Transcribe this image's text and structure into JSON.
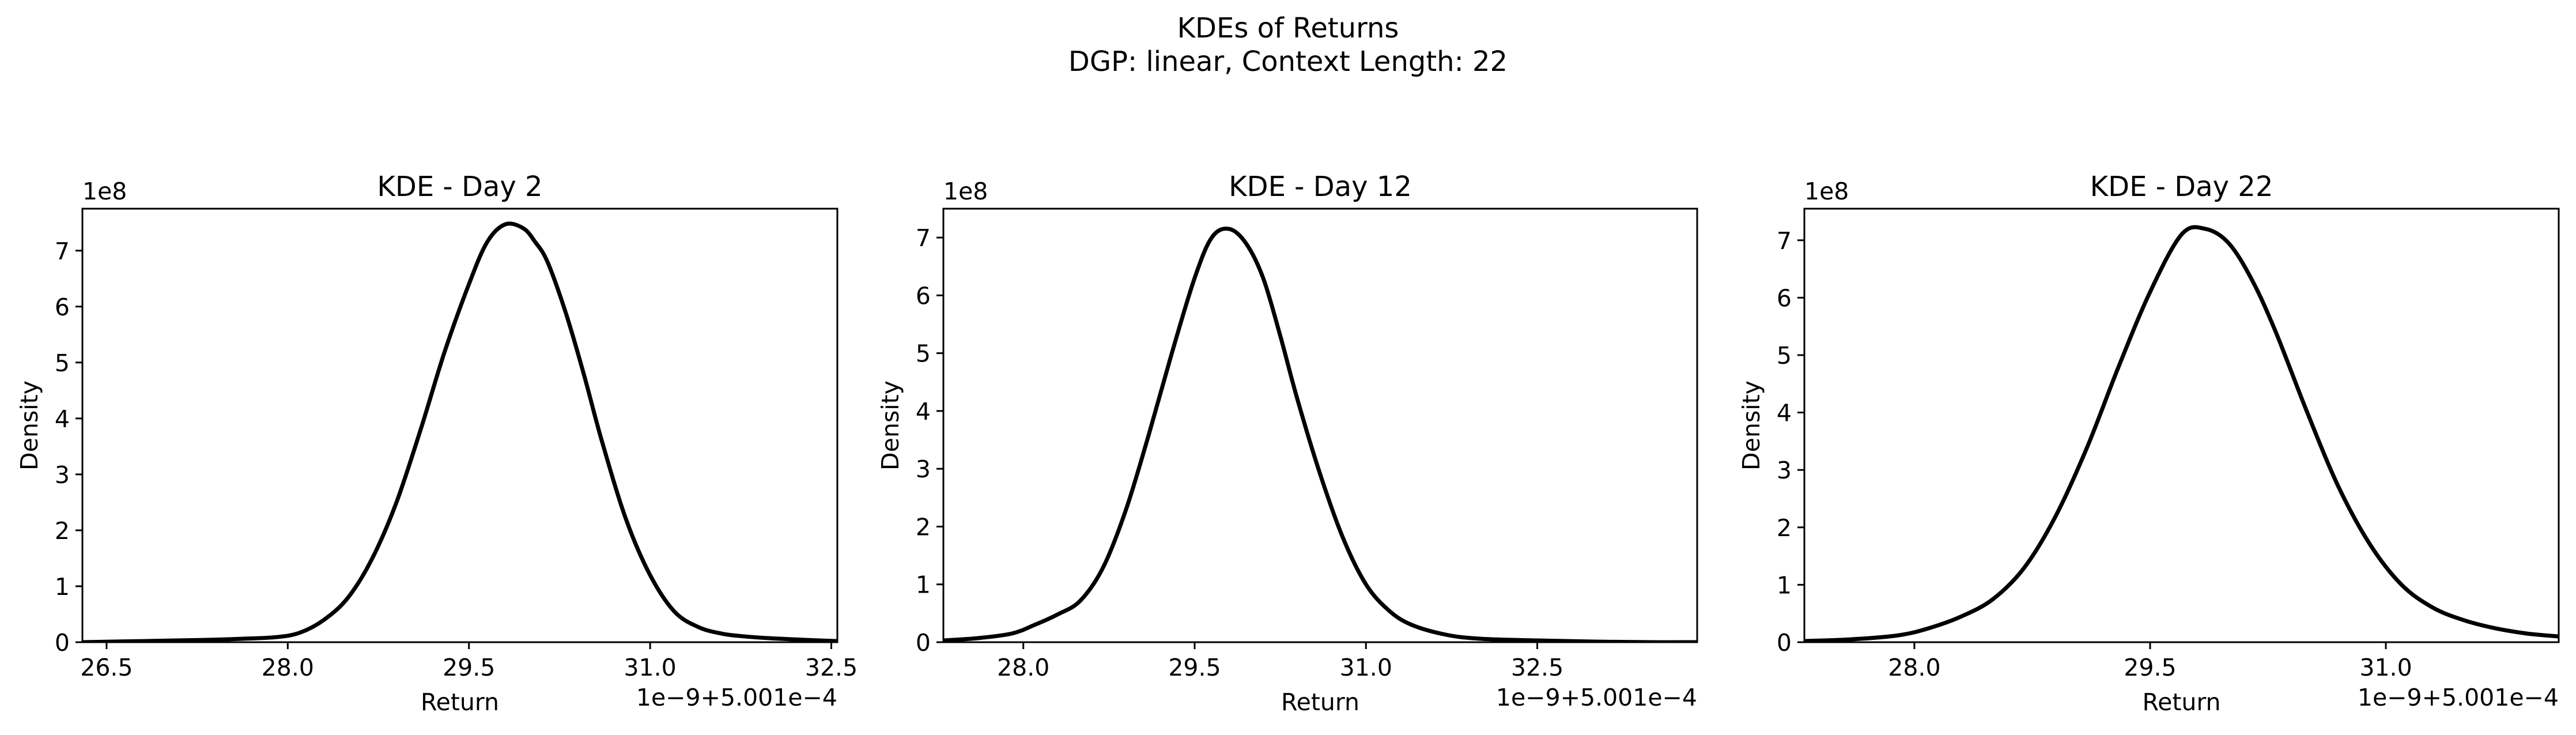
{
  "figure": {
    "title_line1": "KDEs of Returns",
    "title_line2": "DGP: linear, Context Length: 22"
  },
  "chart_data": [
    {
      "type": "line",
      "title": "KDE - Day 2",
      "xlabel": "Return",
      "ylabel": "Density",
      "y_scale_label": "1e8",
      "x_offset_label": "1e−9+5.001e−4",
      "xlim": [
        26.3,
        32.55
      ],
      "ylim": [
        0,
        7.75
      ],
      "xticks": [
        26.5,
        28.0,
        29.5,
        31.0,
        32.5
      ],
      "xtick_labels": [
        "26.5",
        "28.0",
        "29.5",
        "31.0",
        "32.5"
      ],
      "yticks": [
        0,
        1,
        2,
        3,
        4,
        5,
        6,
        7
      ],
      "ytick_labels": [
        "0",
        "1",
        "2",
        "3",
        "4",
        "5",
        "6",
        "7"
      ],
      "grid": false,
      "series": [
        {
          "x": [
            26.3,
            26.8,
            27.3,
            27.6,
            27.9,
            28.1,
            28.3,
            28.5,
            28.7,
            28.9,
            29.1,
            29.3,
            29.5,
            29.65,
            29.8,
            29.95,
            30.05,
            30.15,
            30.3,
            30.45,
            30.6,
            30.8,
            31.0,
            31.2,
            31.4,
            31.6,
            31.8,
            32.0,
            32.3,
            32.55
          ],
          "y": [
            0.0,
            0.02,
            0.04,
            0.06,
            0.09,
            0.17,
            0.4,
            0.8,
            1.5,
            2.5,
            3.8,
            5.2,
            6.4,
            7.15,
            7.47,
            7.4,
            7.15,
            6.8,
            5.9,
            4.8,
            3.6,
            2.2,
            1.2,
            0.55,
            0.27,
            0.15,
            0.1,
            0.07,
            0.04,
            0.02
          ]
        }
      ]
    },
    {
      "type": "line",
      "title": "KDE - Day 12",
      "xlabel": "Return",
      "ylabel": "Density",
      "y_scale_label": "1e8",
      "x_offset_label": "1e−9+5.001e−4",
      "xlim": [
        27.3,
        33.9
      ],
      "ylim": [
        0,
        7.5
      ],
      "xticks": [
        28.0,
        29.5,
        31.0,
        32.5
      ],
      "xtick_labels": [
        "28.0",
        "29.5",
        "31.0",
        "32.5"
      ],
      "yticks": [
        0,
        1,
        2,
        3,
        4,
        5,
        6,
        7
      ],
      "ytick_labels": [
        "0",
        "1",
        "2",
        "3",
        "4",
        "5",
        "6",
        "7"
      ],
      "grid": false,
      "series": [
        {
          "x": [
            27.3,
            27.6,
            27.9,
            28.1,
            28.3,
            28.5,
            28.7,
            28.9,
            29.1,
            29.3,
            29.5,
            29.65,
            29.8,
            29.95,
            30.1,
            30.25,
            30.4,
            30.6,
            30.8,
            31.0,
            31.2,
            31.4,
            31.7,
            32.0,
            32.5,
            33.0,
            33.5,
            33.9
          ],
          "y": [
            0.03,
            0.07,
            0.15,
            0.3,
            0.48,
            0.72,
            1.3,
            2.3,
            3.6,
            5.0,
            6.3,
            7.0,
            7.15,
            6.9,
            6.3,
            5.3,
            4.2,
            2.9,
            1.8,
            1.0,
            0.55,
            0.3,
            0.13,
            0.06,
            0.03,
            0.01,
            0.0,
            0.0
          ]
        }
      ]
    },
    {
      "type": "line",
      "title": "KDE - Day 22",
      "xlabel": "Return",
      "ylabel": "Density",
      "y_scale_label": "1e8",
      "x_offset_label": "1e−9+5.001e−4",
      "xlim": [
        27.3,
        32.1
      ],
      "ylim": [
        0,
        7.55
      ],
      "xticks": [
        28.0,
        29.5,
        31.0
      ],
      "xtick_labels": [
        "28.0",
        "29.5",
        "31.0"
      ],
      "yticks": [
        0,
        1,
        2,
        3,
        4,
        5,
        6,
        7
      ],
      "ytick_labels": [
        "0",
        "1",
        "2",
        "3",
        "4",
        "5",
        "6",
        "7"
      ],
      "grid": false,
      "series": [
        {
          "x": [
            27.3,
            27.6,
            27.9,
            28.1,
            28.3,
            28.5,
            28.7,
            28.9,
            29.1,
            29.3,
            29.5,
            29.7,
            29.85,
            30.0,
            30.15,
            30.3,
            30.5,
            30.7,
            30.9,
            31.1,
            31.3,
            31.5,
            31.7,
            31.9,
            32.1
          ],
          "y": [
            0.02,
            0.05,
            0.12,
            0.25,
            0.45,
            0.75,
            1.3,
            2.2,
            3.4,
            4.8,
            6.1,
            7.1,
            7.2,
            6.95,
            6.3,
            5.4,
            4.0,
            2.7,
            1.7,
            1.0,
            0.6,
            0.38,
            0.24,
            0.15,
            0.1
          ]
        }
      ]
    }
  ]
}
